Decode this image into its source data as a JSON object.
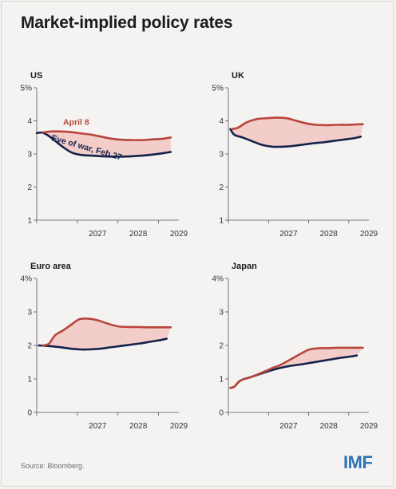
{
  "title": "Market-implied policy rates",
  "source": "Source: Bloomberg.",
  "logo": "IMF",
  "colors": {
    "april": "#b8453c",
    "eve": "#14224a",
    "fill": "#f3c9c4"
  },
  "chart_data": [
    {
      "type": "line",
      "title": "US",
      "ylim": [
        1,
        5
      ],
      "yticks": [
        "1",
        "2",
        "3",
        "4",
        "5%"
      ],
      "xlim": [
        2026.0,
        2029.5
      ],
      "xticks": [
        "2027",
        "2028",
        "2029"
      ],
      "annotations": [
        {
          "text": "April 8",
          "series": "April 8"
        },
        {
          "text": "Eve of war, Feb 27",
          "series": "Eve of war, Feb 27"
        }
      ],
      "series": [
        {
          "name": "April 8",
          "x": [
            2026.15,
            2026.35,
            2026.6,
            2026.85,
            2027.1,
            2027.35,
            2027.6,
            2027.85,
            2028.1,
            2028.35,
            2028.6,
            2028.85,
            2029.1,
            2029.3
          ],
          "y": [
            3.65,
            3.68,
            3.68,
            3.66,
            3.62,
            3.58,
            3.52,
            3.46,
            3.43,
            3.42,
            3.42,
            3.44,
            3.46,
            3.5
          ]
        },
        {
          "name": "Eve of war, Feb 27",
          "x": [
            2026.0,
            2026.15,
            2026.35,
            2026.6,
            2026.85,
            2027.1,
            2027.35,
            2027.6,
            2027.85,
            2028.1,
            2028.35,
            2028.6,
            2028.85,
            2029.1,
            2029.3
          ],
          "y": [
            3.63,
            3.64,
            3.5,
            3.25,
            3.05,
            2.97,
            2.95,
            2.93,
            2.92,
            2.92,
            2.93,
            2.95,
            2.98,
            3.02,
            3.06
          ]
        }
      ]
    },
    {
      "type": "line",
      "title": "UK",
      "ylim": [
        1,
        5
      ],
      "yticks": [
        "1",
        "2",
        "3",
        "4",
        "5%"
      ],
      "xlim": [
        2026.0,
        2029.5
      ],
      "xticks": [
        "2027",
        "2028",
        "2029"
      ],
      "series": [
        {
          "name": "April 8",
          "x": [
            2026.1,
            2026.25,
            2026.45,
            2026.7,
            2026.95,
            2027.2,
            2027.45,
            2027.7,
            2027.95,
            2028.2,
            2028.45,
            2028.7,
            2028.95,
            2029.15,
            2029.35
          ],
          "y": [
            3.75,
            3.8,
            3.95,
            4.05,
            4.08,
            4.1,
            4.08,
            4.0,
            3.92,
            3.88,
            3.87,
            3.88,
            3.88,
            3.89,
            3.9
          ]
        },
        {
          "name": "Eve of war, Feb 27",
          "x": [
            2026.05,
            2026.15,
            2026.35,
            2026.6,
            2026.85,
            2027.1,
            2027.35,
            2027.6,
            2027.85,
            2028.1,
            2028.35,
            2028.6,
            2028.85,
            2029.1,
            2029.3
          ],
          "y": [
            3.75,
            3.58,
            3.5,
            3.38,
            3.27,
            3.22,
            3.22,
            3.24,
            3.28,
            3.32,
            3.35,
            3.39,
            3.43,
            3.47,
            3.52
          ]
        }
      ]
    },
    {
      "type": "line",
      "title": "Euro area",
      "ylim": [
        0,
        4
      ],
      "yticks": [
        "0",
        "1",
        "2",
        "3",
        "4%"
      ],
      "xlim": [
        2026.0,
        2029.5
      ],
      "xticks": [
        "2027",
        "2028",
        "2029"
      ],
      "series": [
        {
          "name": "April 8",
          "x": [
            2026.15,
            2026.3,
            2026.45,
            2026.65,
            2026.85,
            2027.05,
            2027.25,
            2027.5,
            2027.75,
            2028.0,
            2028.25,
            2028.5,
            2028.75,
            2029.0,
            2029.3
          ],
          "y": [
            2.0,
            2.05,
            2.3,
            2.45,
            2.62,
            2.78,
            2.8,
            2.75,
            2.65,
            2.57,
            2.55,
            2.55,
            2.54,
            2.54,
            2.54
          ]
        },
        {
          "name": "Eve of war, Feb 27",
          "x": [
            2026.05,
            2026.3,
            2026.55,
            2026.8,
            2027.05,
            2027.3,
            2027.55,
            2027.8,
            2028.05,
            2028.3,
            2028.55,
            2028.8,
            2029.05,
            2029.2
          ],
          "y": [
            2.0,
            1.98,
            1.95,
            1.91,
            1.88,
            1.88,
            1.9,
            1.94,
            1.98,
            2.02,
            2.06,
            2.11,
            2.16,
            2.2
          ]
        }
      ]
    },
    {
      "type": "line",
      "title": "Japan",
      "ylim": [
        0,
        4
      ],
      "yticks": [
        "0",
        "1",
        "2",
        "3",
        "4%"
      ],
      "xlim": [
        2026.0,
        2029.5
      ],
      "xticks": [
        "2027",
        "2028",
        "2029"
      ],
      "series": [
        {
          "name": "April 8",
          "x": [
            2026.05,
            2026.15,
            2026.3,
            2026.55,
            2026.8,
            2027.05,
            2027.3,
            2027.55,
            2027.8,
            2028.0,
            2028.2,
            2028.45,
            2028.7,
            2028.95,
            2029.2,
            2029.35
          ],
          "y": [
            0.73,
            0.77,
            0.95,
            1.05,
            1.17,
            1.3,
            1.42,
            1.58,
            1.75,
            1.87,
            1.91,
            1.92,
            1.93,
            1.93,
            1.93,
            1.93
          ]
        },
        {
          "name": "Eve of war, Feb 27",
          "x": [
            2026.05,
            2026.15,
            2026.3,
            2026.55,
            2026.8,
            2027.05,
            2027.3,
            2027.55,
            2027.8,
            2028.05,
            2028.3,
            2028.55,
            2028.8,
            2029.05,
            2029.2
          ],
          "y": [
            0.73,
            0.77,
            0.95,
            1.05,
            1.15,
            1.25,
            1.33,
            1.39,
            1.43,
            1.48,
            1.53,
            1.58,
            1.63,
            1.67,
            1.7
          ]
        }
      ]
    }
  ]
}
